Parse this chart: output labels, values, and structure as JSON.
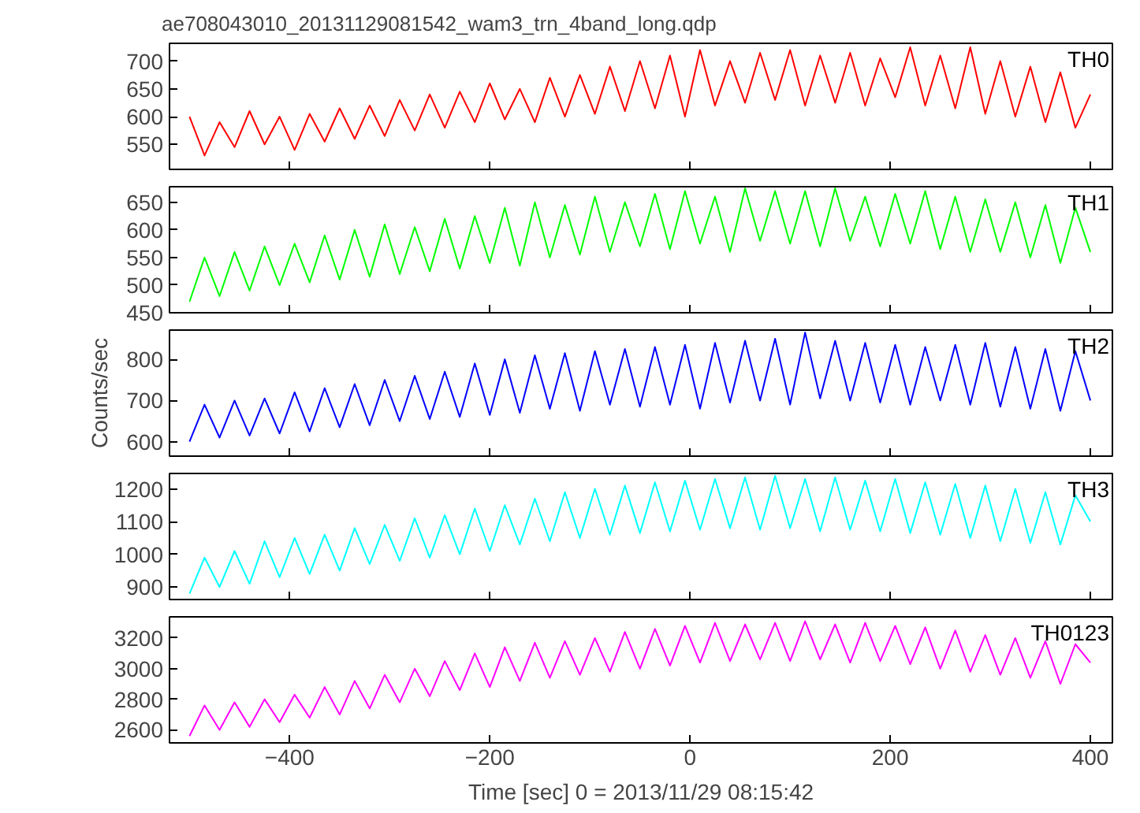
{
  "chart_data": [
    {
      "type": "line",
      "title": "ae708043010_20131129081542_wam3_trn_4band_long.qdp",
      "tick_labels": "y",
      "xlim": [
        -520,
        422
      ],
      "xticks": [
        -400,
        -200,
        0,
        200,
        400
      ],
      "ylim": [
        505,
        732
      ],
      "yticks": [
        550,
        600,
        650,
        700
      ],
      "x": [
        -500,
        -485,
        -470,
        -455,
        -440,
        -425,
        -410,
        -395,
        -380,
        -365,
        -350,
        -335,
        -320,
        -305,
        -290,
        -275,
        -260,
        -245,
        -230,
        -215,
        -200,
        -185,
        -170,
        -155,
        -140,
        -125,
        -110,
        -95,
        -80,
        -65,
        -50,
        -35,
        -20,
        -5,
        10,
        25,
        40,
        55,
        70,
        85,
        100,
        115,
        130,
        145,
        160,
        175,
        190,
        205,
        220,
        235,
        250,
        265,
        280,
        295,
        310,
        325,
        340,
        355,
        370,
        385,
        400
      ],
      "series": [
        {
          "name": "TH0",
          "color": "#ff0000",
          "values": [
            600,
            530,
            590,
            545,
            610,
            550,
            600,
            540,
            605,
            555,
            615,
            560,
            620,
            565,
            630,
            575,
            640,
            580,
            645,
            590,
            660,
            595,
            650,
            590,
            670,
            600,
            675,
            605,
            690,
            610,
            700,
            615,
            710,
            600,
            720,
            620,
            700,
            625,
            715,
            630,
            720,
            620,
            710,
            625,
            715,
            620,
            705,
            635,
            725,
            620,
            710,
            615,
            725,
            605,
            700,
            600,
            690,
            590,
            680,
            580,
            640
          ]
        }
      ]
    },
    {
      "type": "line",
      "tick_labels": "y",
      "xlim": [
        -520,
        422
      ],
      "xticks": [
        -400,
        -200,
        0,
        200,
        400
      ],
      "ylim": [
        450,
        678
      ],
      "yticks": [
        450,
        500,
        550,
        600,
        650
      ],
      "x": [
        -500,
        -485,
        -470,
        -455,
        -440,
        -425,
        -410,
        -395,
        -380,
        -365,
        -350,
        -335,
        -320,
        -305,
        -290,
        -275,
        -260,
        -245,
        -230,
        -215,
        -200,
        -185,
        -170,
        -155,
        -140,
        -125,
        -110,
        -95,
        -80,
        -65,
        -50,
        -35,
        -20,
        -5,
        10,
        25,
        40,
        55,
        70,
        85,
        100,
        115,
        130,
        145,
        160,
        175,
        190,
        205,
        220,
        235,
        250,
        265,
        280,
        295,
        310,
        325,
        340,
        355,
        370,
        385,
        400
      ],
      "series": [
        {
          "name": "TH1",
          "color": "#00ff00",
          "values": [
            470,
            550,
            480,
            560,
            490,
            570,
            500,
            575,
            505,
            590,
            510,
            600,
            515,
            610,
            520,
            605,
            525,
            620,
            530,
            625,
            540,
            640,
            535,
            650,
            550,
            645,
            555,
            660,
            560,
            650,
            570,
            665,
            565,
            670,
            575,
            660,
            560,
            675,
            580,
            670,
            575,
            670,
            570,
            675,
            580,
            660,
            570,
            665,
            575,
            670,
            565,
            660,
            560,
            655,
            560,
            650,
            550,
            645,
            540,
            640,
            560
          ]
        }
      ]
    },
    {
      "type": "line",
      "ylabel": "Counts/sec",
      "tick_labels": "y",
      "xlim": [
        -520,
        422
      ],
      "xticks": [
        -400,
        -200,
        0,
        200,
        400
      ],
      "ylim": [
        565,
        871
      ],
      "yticks": [
        600,
        700,
        800
      ],
      "x": [
        -500,
        -485,
        -470,
        -455,
        -440,
        -425,
        -410,
        -395,
        -380,
        -365,
        -350,
        -335,
        -320,
        -305,
        -290,
        -275,
        -260,
        -245,
        -230,
        -215,
        -200,
        -185,
        -170,
        -155,
        -140,
        -125,
        -110,
        -95,
        -80,
        -65,
        -50,
        -35,
        -20,
        -5,
        10,
        25,
        40,
        55,
        70,
        85,
        100,
        115,
        130,
        145,
        160,
        175,
        190,
        205,
        220,
        235,
        250,
        265,
        280,
        295,
        310,
        325,
        340,
        355,
        370,
        385,
        400
      ],
      "series": [
        {
          "name": "TH2",
          "color": "#0000ff",
          "values": [
            600,
            690,
            610,
            700,
            615,
            705,
            620,
            720,
            625,
            730,
            635,
            740,
            640,
            750,
            650,
            760,
            655,
            770,
            660,
            790,
            665,
            800,
            670,
            810,
            680,
            815,
            675,
            820,
            690,
            825,
            685,
            830,
            690,
            835,
            680,
            840,
            695,
            845,
            700,
            850,
            690,
            865,
            705,
            845,
            700,
            840,
            695,
            835,
            690,
            830,
            700,
            835,
            690,
            840,
            685,
            830,
            680,
            825,
            675,
            820,
            700
          ]
        }
      ]
    },
    {
      "type": "line",
      "tick_labels": "y",
      "xlim": [
        -520,
        422
      ],
      "xticks": [
        -400,
        -200,
        0,
        200,
        400
      ],
      "ylim": [
        862,
        1247
      ],
      "yticks": [
        900,
        1000,
        1100,
        1200
      ],
      "x": [
        -500,
        -485,
        -470,
        -455,
        -440,
        -425,
        -410,
        -395,
        -380,
        -365,
        -350,
        -335,
        -320,
        -305,
        -290,
        -275,
        -260,
        -245,
        -230,
        -215,
        -200,
        -185,
        -170,
        -155,
        -140,
        -125,
        -110,
        -95,
        -80,
        -65,
        -50,
        -35,
        -20,
        -5,
        10,
        25,
        40,
        55,
        70,
        85,
        100,
        115,
        130,
        145,
        160,
        175,
        190,
        205,
        220,
        235,
        250,
        265,
        280,
        295,
        310,
        325,
        340,
        355,
        370,
        385,
        400
      ],
      "series": [
        {
          "name": "TH3",
          "color": "#00ffff",
          "values": [
            880,
            990,
            900,
            1010,
            910,
            1040,
            930,
            1050,
            940,
            1060,
            950,
            1080,
            970,
            1090,
            980,
            1110,
            990,
            1120,
            1000,
            1140,
            1010,
            1150,
            1030,
            1170,
            1040,
            1190,
            1050,
            1200,
            1060,
            1210,
            1065,
            1220,
            1070,
            1225,
            1075,
            1230,
            1080,
            1235,
            1075,
            1240,
            1080,
            1230,
            1070,
            1235,
            1075,
            1225,
            1070,
            1230,
            1065,
            1220,
            1060,
            1215,
            1050,
            1210,
            1040,
            1200,
            1035,
            1190,
            1030,
            1180,
            1100
          ]
        }
      ]
    },
    {
      "type": "line",
      "xlabel": "Time [sec] 0 = 2013/11/29 08:15:42",
      "xlim": [
        -520,
        422
      ],
      "xticks": [
        -400,
        -200,
        0,
        200,
        400
      ],
      "ylim": [
        2515,
        3339
      ],
      "yticks": [
        2600,
        2800,
        3000,
        3200
      ],
      "x": [
        -500,
        -485,
        -470,
        -455,
        -440,
        -425,
        -410,
        -395,
        -380,
        -365,
        -350,
        -335,
        -320,
        -305,
        -290,
        -275,
        -260,
        -245,
        -230,
        -215,
        -200,
        -185,
        -170,
        -155,
        -140,
        -125,
        -110,
        -95,
        -80,
        -65,
        -50,
        -35,
        -20,
        -5,
        10,
        25,
        40,
        55,
        70,
        85,
        100,
        115,
        130,
        145,
        160,
        175,
        190,
        205,
        220,
        235,
        250,
        265,
        280,
        295,
        310,
        325,
        340,
        355,
        370,
        385,
        400
      ],
      "series": [
        {
          "name": "TH0123",
          "color": "#ff00ff",
          "values": [
            2560,
            2760,
            2600,
            2780,
            2620,
            2800,
            2650,
            2830,
            2680,
            2880,
            2700,
            2920,
            2740,
            2960,
            2780,
            3000,
            2820,
            3050,
            2860,
            3100,
            2880,
            3140,
            2920,
            3170,
            2940,
            3180,
            2960,
            3200,
            2980,
            3240,
            3000,
            3260,
            3020,
            3280,
            3040,
            3300,
            3050,
            3290,
            3060,
            3300,
            3050,
            3310,
            3060,
            3290,
            3040,
            3300,
            3050,
            3280,
            3030,
            3270,
            3000,
            3250,
            2980,
            3220,
            2960,
            3200,
            2940,
            3180,
            2900,
            3160,
            3040
          ]
        }
      ]
    }
  ]
}
